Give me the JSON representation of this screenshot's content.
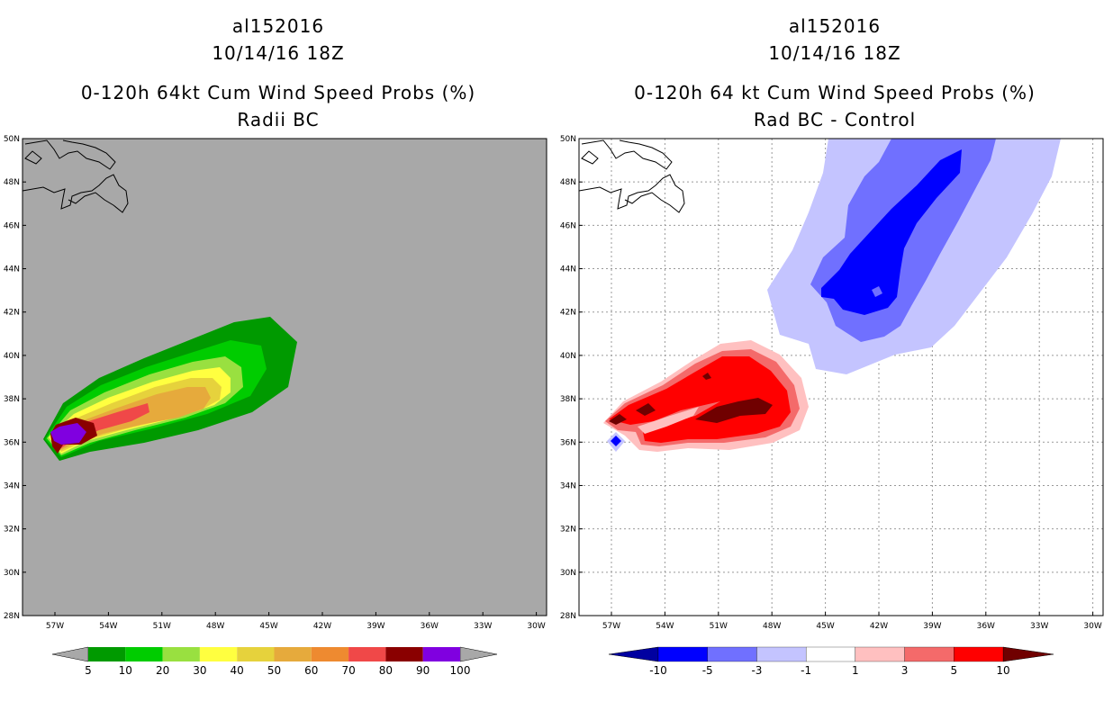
{
  "panels": [
    {
      "storm_id": "al152016",
      "date": "10/14/16 18Z",
      "product": "0-120h 64kt Cum Wind Speed Probs (%)",
      "subtitle": "Radii BC",
      "map_background": "#a8a8a8",
      "colorbar_labels": [
        "5",
        "10",
        "20",
        "30",
        "40",
        "50",
        "60",
        "70",
        "80",
        "90",
        "100"
      ],
      "colorbar_colors": [
        "#009a00",
        "#00cc00",
        "#99e040",
        "#ffff40",
        "#e6d23c",
        "#e6aa3c",
        "#ee8a30",
        "#f04848",
        "#8a0000",
        "#8000e0"
      ]
    },
    {
      "storm_id": "al152016",
      "date": "10/14/16 18Z",
      "product": "0-120h 64 kt Cum Wind Speed Probs (%)",
      "subtitle": "Rad BC - Control",
      "map_background": "#ffffff",
      "colorbar_labels": [
        "-10",
        "-5",
        "-3",
        "-1",
        "1",
        "3",
        "5",
        "10"
      ],
      "colorbar_colors": [
        "#0000a0",
        "#0000ff",
        "#7070ff",
        "#c4c4ff",
        "#ffffff",
        "#ffc0c0",
        "#f46a6a",
        "#ff0000",
        "#700000"
      ]
    }
  ],
  "lat_labels": [
    "50N",
    "48N",
    "46N",
    "44N",
    "42N",
    "40N",
    "38N",
    "36N",
    "34N",
    "32N",
    "30N",
    "28N"
  ],
  "lon_labels": [
    "57W",
    "54W",
    "51W",
    "48W",
    "45W",
    "42W",
    "39W",
    "36W",
    "33W",
    "30W"
  ]
}
